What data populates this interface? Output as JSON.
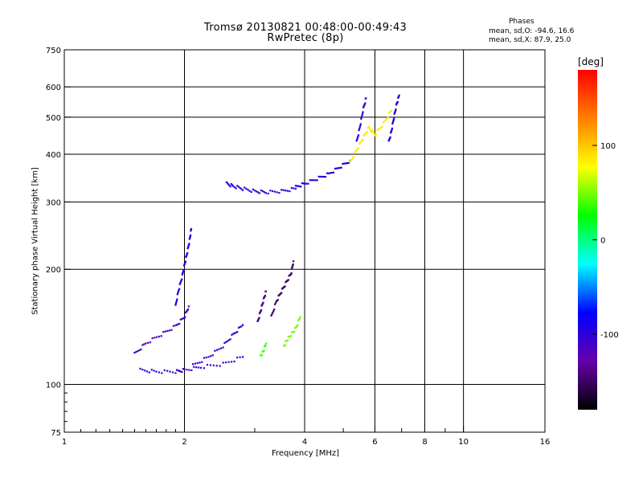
{
  "title": {
    "line1": "Tromsø 20130821 00:48:00-00:49:43",
    "line2": "RwPretec (8p)"
  },
  "stats": {
    "heading": "Phases",
    "line1": "mean, sd,O: -94.6, 16.6",
    "line2": "mean, sd,X:  87.9, 25.0"
  },
  "axes": {
    "xlabel": "Frequency [MHz]",
    "ylabel": "Stationary phase Virtual Height [km]",
    "xscale": "log",
    "yscale": "log",
    "xlim": [
      1,
      16
    ],
    "ylim": [
      75,
      750
    ],
    "xticks": [
      1,
      2,
      4,
      6,
      8,
      10,
      16
    ],
    "xtick_labels": [
      "1",
      "2",
      "4",
      "6",
      "8",
      "10",
      "16"
    ],
    "x_grid": [
      2,
      4,
      6,
      8,
      10
    ],
    "x_minor": [
      3,
      5,
      7,
      9
    ],
    "yticks": [
      75,
      100,
      200,
      300,
      400,
      500,
      600,
      750
    ],
    "ytick_labels": [
      "75",
      "100",
      "200",
      "300",
      "400",
      "500",
      "600",
      "750"
    ],
    "y_grid": [
      100,
      200,
      300,
      400,
      500,
      600
    ],
    "grid": true
  },
  "colorbar": {
    "unit": "[deg]",
    "range": [
      -180,
      180
    ],
    "ticks": [
      100,
      0,
      -100
    ],
    "tick_labels": [
      "100",
      "0",
      "-100"
    ],
    "colors": [
      "#000000",
      "#6600aa",
      "#0000ff",
      "#00ffff",
      "#00ff00",
      "#ffff00",
      "#ff8000",
      "#ff0000"
    ]
  },
  "chart_data": {
    "type": "scatter",
    "title": "Tromsø 20130821 00:48:00-00:49:43",
    "subtitle": "RwPretec (8p)",
    "xlabel": "Frequency [MHz]",
    "ylabel": "Stationary phase Virtual Height [km]",
    "xlim": [
      1,
      16
    ],
    "ylim": [
      75,
      750
    ],
    "color_value": "phase [deg]",
    "traces": [
      {
        "x": [
          1.55,
          1.7,
          1.9,
          2.0,
          2.2,
          2.5,
          2.8
        ],
        "y": [
          109,
          108,
          108,
          109,
          111,
          113,
          118
        ],
        "phase": -105
      },
      {
        "x": [
          1.5,
          1.6,
          1.75,
          1.9,
          2.0,
          2.05
        ],
        "y": [
          120,
          128,
          135,
          142,
          150,
          160
        ],
        "phase": -110
      },
      {
        "x": [
          1.9,
          1.93,
          1.97,
          2.0,
          2.03,
          2.06,
          2.08
        ],
        "y": [
          160,
          175,
          190,
          205,
          220,
          238,
          255
        ],
        "phase": -95
      },
      {
        "x": [
          2.1,
          2.3,
          2.5,
          2.65,
          2.8
        ],
        "y": [
          112,
          118,
          126,
          135,
          143
        ],
        "phase": -105
      },
      {
        "x": [
          2.55,
          2.65,
          2.8,
          3.0,
          3.2,
          3.5,
          3.8
        ],
        "y": [
          335,
          330,
          325,
          320,
          318,
          320,
          325
        ],
        "phase": -100
      },
      {
        "x": [
          3.8,
          4.0,
          4.3,
          4.6,
          4.9,
          5.2
        ],
        "y": [
          328,
          335,
          345,
          355,
          370,
          385
        ],
        "phase": -95
      },
      {
        "x": [
          5.2,
          5.4,
          5.6,
          5.8,
          6.0,
          6.3,
          6.6
        ],
        "y": [
          380,
          410,
          440,
          470,
          450,
          480,
          520
        ],
        "phase": 85
      },
      {
        "x": [
          5.4,
          5.5,
          5.6,
          5.7
        ],
        "y": [
          430,
          470,
          520,
          560
        ],
        "phase": -100
      },
      {
        "x": [
          6.5,
          6.6,
          6.7,
          6.8,
          6.9
        ],
        "y": [
          430,
          460,
          500,
          540,
          570
        ],
        "phase": -95
      },
      {
        "x": [
          3.3,
          3.4,
          3.5,
          3.6,
          3.7,
          3.75
        ],
        "y": [
          150,
          165,
          175,
          185,
          195,
          210
        ],
        "phase": -150
      },
      {
        "x": [
          3.05,
          3.1,
          3.15,
          3.2
        ],
        "y": [
          145,
          155,
          165,
          175
        ],
        "phase": -140
      },
      {
        "x": [
          3.55,
          3.6,
          3.7,
          3.8,
          3.9
        ],
        "y": [
          125,
          130,
          135,
          140,
          150
        ],
        "phase": 50
      },
      {
        "x": [
          3.1,
          3.15,
          3.2
        ],
        "y": [
          118,
          122,
          128
        ],
        "phase": 40
      }
    ]
  }
}
